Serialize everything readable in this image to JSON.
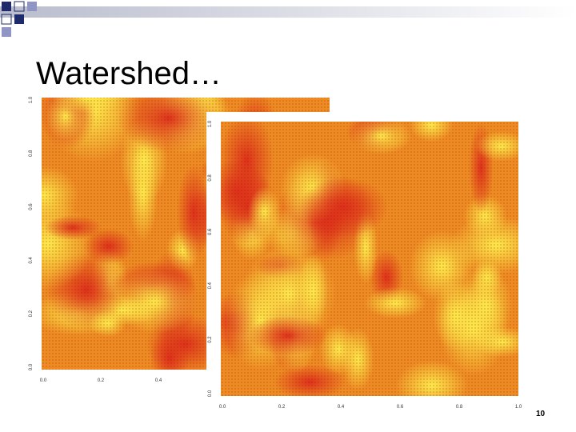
{
  "header": {
    "title": "Watershed…"
  },
  "plots": [
    {
      "y_ticks": [
        "0.0",
        "0.2",
        "0.4",
        "0.6",
        "0.8",
        "1.0"
      ],
      "x_ticks": [
        "0.0",
        "0.2",
        "0.4"
      ]
    },
    {
      "y_ticks": [
        "0.0",
        "0.2",
        "0.4",
        "0.6",
        "0.8",
        "1.0"
      ],
      "x_ticks": [
        "0.0",
        "0.2",
        "0.4",
        "0.6",
        "0.8",
        "1.0"
      ]
    }
  ],
  "footer": {
    "page_number": "10"
  }
}
